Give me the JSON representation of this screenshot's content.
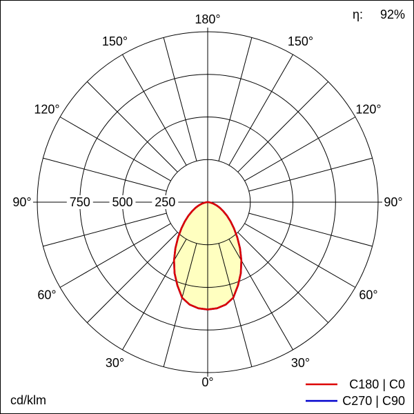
{
  "chart_data": {
    "type": "line",
    "projection": "polar",
    "units": "cd/klm",
    "efficiency": {
      "label": "η:",
      "value": "92%"
    },
    "radial_axis": {
      "ticks": [
        250,
        500,
        750
      ],
      "max": 1000,
      "unit": "cd/klm"
    },
    "angle_step_deg": 15,
    "angle_labels": [
      {
        "deg": 0,
        "label": "0°"
      },
      {
        "deg": 30,
        "label": "30°"
      },
      {
        "deg": 60,
        "label": "60°"
      },
      {
        "deg": 90,
        "label": "90°"
      },
      {
        "deg": 120,
        "label": "120°"
      },
      {
        "deg": 150,
        "label": "150°"
      },
      {
        "deg": 180,
        "label": "180°"
      }
    ],
    "series": [
      {
        "name": "C180 | C0",
        "color": "#dd0000",
        "fill": "#ffffc0",
        "gamma_deg": [
          0,
          5,
          10,
          15,
          20,
          25,
          30,
          35,
          40,
          45,
          50,
          55,
          60,
          65,
          70,
          75,
          80,
          85,
          90
        ],
        "values": [
          630,
          625,
          610,
          580,
          520,
          460,
          395,
          330,
          270,
          218,
          175,
          138,
          105,
          78,
          55,
          35,
          20,
          10,
          4
        ]
      },
      {
        "name": "C270 | C90",
        "color": "#0000cd",
        "fill": null,
        "gamma_deg": [
          0,
          5,
          10,
          15,
          20,
          25,
          30,
          35,
          40,
          45,
          50,
          55,
          60,
          65,
          70,
          75,
          80,
          85,
          90
        ],
        "values": [
          630,
          625,
          610,
          580,
          520,
          460,
          395,
          330,
          270,
          218,
          175,
          138,
          105,
          78,
          55,
          35,
          20,
          10,
          4
        ]
      }
    ],
    "legend": {
      "position": "bottom-right",
      "items": [
        {
          "label": "C180 | C0",
          "color": "#dd0000"
        },
        {
          "label": "C270 | C90",
          "color": "#0000cd"
        }
      ]
    }
  }
}
